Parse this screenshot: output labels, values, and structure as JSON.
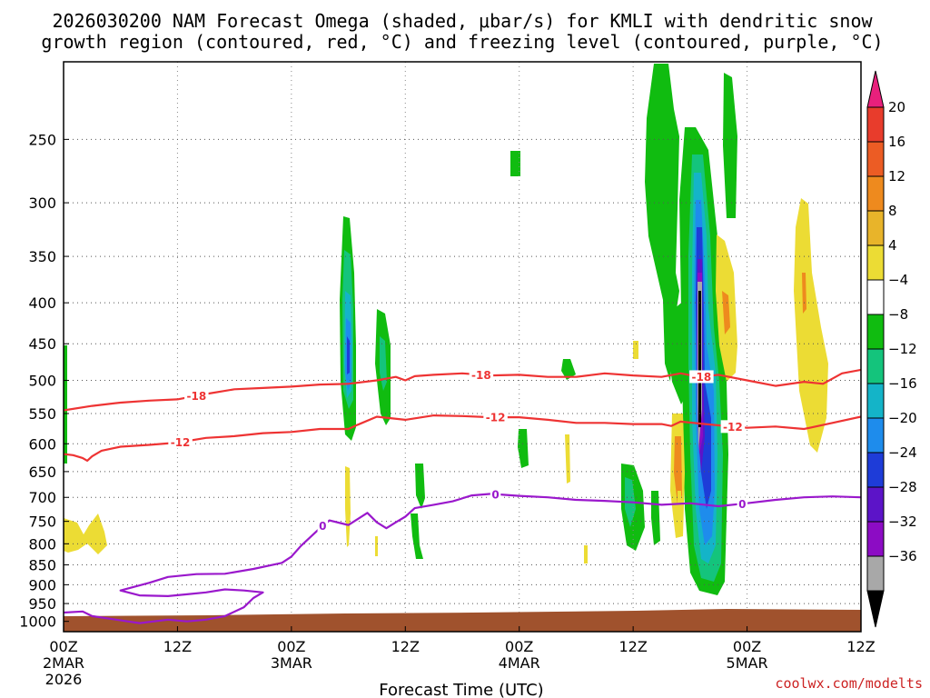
{
  "chart_data": {
    "type": "contour",
    "title_line1": "2026030200 NAM Forecast Omega (shaded, μbar/s) for KMLI with dendritic snow",
    "title_line2": "growth region (contoured, red, °C) and freezing level (contoured, purple, °C)",
    "xlabel": "Forecast Time (UTC)",
    "credit": "coolwx.com/modelts",
    "x_range_hours": [
      0,
      84
    ],
    "y_range_hpa": [
      1030,
      200
    ],
    "x_ticks": [
      {
        "hour": 0,
        "line1": "00Z",
        "line2": "2MAR",
        "line3": "2026"
      },
      {
        "hour": 12,
        "line1": "12Z",
        "line2": "",
        "line3": ""
      },
      {
        "hour": 24,
        "line1": "00Z",
        "line2": "3MAR",
        "line3": ""
      },
      {
        "hour": 36,
        "line1": "12Z",
        "line2": "",
        "line3": ""
      },
      {
        "hour": 48,
        "line1": "00Z",
        "line2": "4MAR",
        "line3": ""
      },
      {
        "hour": 60,
        "line1": "12Z",
        "line2": "",
        "line3": ""
      },
      {
        "hour": 72,
        "line1": "00Z",
        "line2": "5MAR",
        "line3": ""
      },
      {
        "hour": 84,
        "line1": "12Z",
        "line2": "",
        "line3": ""
      }
    ],
    "y_ticks": [
      250,
      300,
      350,
      400,
      450,
      500,
      550,
      600,
      650,
      700,
      750,
      800,
      850,
      900,
      950,
      1000
    ],
    "colorbar": {
      "labels": [
        "20",
        "16",
        "12",
        "8",
        "4",
        "−4",
        "−8",
        "−12",
        "−16",
        "−20",
        "−24",
        "−28",
        "−32",
        "−36"
      ],
      "colors": [
        "#e8207c",
        "#e83c2c",
        "#ec5c24",
        "#ee8a1e",
        "#e8b42a",
        "#ecdc34",
        "#ffffff",
        "#10bc10",
        "#14c47c",
        "#14b4c8",
        "#1e8cec",
        "#1e3cd8",
        "#5c14c8",
        "#8c0cc4",
        "#a8a8a8",
        "#000000"
      ]
    },
    "series": [
      {
        "name": "-18",
        "kind": "dgz-top",
        "color": "#ee3333",
        "points": [
          [
            0,
            545
          ],
          [
            3,
            538
          ],
          [
            6,
            533
          ],
          [
            9,
            530
          ],
          [
            12,
            528
          ],
          [
            15,
            520
          ],
          [
            18,
            513
          ],
          [
            21,
            511
          ],
          [
            24,
            509
          ],
          [
            27,
            506
          ],
          [
            30,
            505
          ],
          [
            33,
            500
          ],
          [
            35,
            495
          ],
          [
            36,
            500
          ],
          [
            37,
            494
          ],
          [
            39,
            492
          ],
          [
            42,
            490
          ],
          [
            45,
            493
          ],
          [
            48,
            492
          ],
          [
            51,
            495
          ],
          [
            54,
            495
          ],
          [
            57,
            490
          ],
          [
            60,
            493
          ],
          [
            63,
            495
          ],
          [
            65,
            490
          ],
          [
            67,
            495
          ],
          [
            69,
            492
          ],
          [
            72,
            500
          ],
          [
            75,
            508
          ],
          [
            78,
            502
          ],
          [
            80,
            505
          ],
          [
            82,
            490
          ],
          [
            84,
            485
          ]
        ],
        "labels": [
          {
            "text": "-18",
            "hour": 14
          },
          {
            "text": "-18",
            "hour": 44
          },
          {
            "text": "-18",
            "hour": 67.2
          }
        ]
      },
      {
        "name": "-12",
        "kind": "dgz-bottom",
        "color": "#ee3333",
        "points": [
          [
            0,
            618
          ],
          [
            1,
            620
          ],
          [
            2,
            625
          ],
          [
            2.5,
            630
          ],
          [
            3,
            622
          ],
          [
            4,
            612
          ],
          [
            6,
            605
          ],
          [
            9,
            602
          ],
          [
            12,
            598
          ],
          [
            15,
            590
          ],
          [
            18,
            587
          ],
          [
            21,
            582
          ],
          [
            24,
            580
          ],
          [
            27,
            575
          ],
          [
            30,
            575
          ],
          [
            31,
            568
          ],
          [
            33,
            555
          ],
          [
            36,
            560
          ],
          [
            39,
            553
          ],
          [
            42,
            554
          ],
          [
            45,
            556
          ],
          [
            48,
            556
          ],
          [
            51,
            560
          ],
          [
            54,
            565
          ],
          [
            57,
            565
          ],
          [
            60,
            567
          ],
          [
            63,
            567
          ],
          [
            64,
            570
          ],
          [
            65,
            563
          ],
          [
            67,
            566
          ],
          [
            69,
            569
          ],
          [
            72,
            573
          ],
          [
            75,
            571
          ],
          [
            78,
            575
          ],
          [
            81,
            565
          ],
          [
            84,
            555
          ]
        ],
        "labels": [
          {
            "text": "-12",
            "hour": 12.3
          },
          {
            "text": "-12",
            "hour": 45.5
          },
          {
            "text": "-12",
            "hour": 70.5
          }
        ]
      },
      {
        "name": "0",
        "kind": "freezing-level",
        "color": "#9a18cc",
        "points": [
          [
            0,
            975
          ],
          [
            2,
            972
          ],
          [
            3,
            985
          ],
          [
            8,
            1005
          ],
          [
            11,
            995
          ],
          [
            13,
            1000
          ],
          [
            15,
            995
          ],
          [
            17,
            985
          ],
          [
            19,
            960
          ],
          [
            20,
            935
          ],
          [
            21,
            920
          ],
          [
            19,
            915
          ],
          [
            17,
            912
          ],
          [
            15,
            920
          ],
          [
            13,
            925
          ],
          [
            11,
            930
          ],
          [
            8,
            928
          ],
          [
            6,
            915
          ],
          [
            9,
            895
          ],
          [
            11,
            880
          ],
          [
            14,
            873
          ],
          [
            17,
            872
          ],
          [
            20,
            860
          ],
          [
            23,
            845
          ],
          [
            24,
            830
          ],
          [
            25,
            805
          ],
          [
            27,
            765
          ],
          [
            28,
            748
          ],
          [
            30,
            758
          ],
          [
            32,
            732
          ],
          [
            33,
            752
          ],
          [
            34,
            765
          ],
          [
            35,
            752
          ],
          [
            36,
            740
          ],
          [
            37,
            722
          ],
          [
            39,
            715
          ],
          [
            41,
            708
          ],
          [
            43,
            696
          ],
          [
            45,
            693
          ],
          [
            48,
            697
          ],
          [
            51,
            700
          ],
          [
            54,
            705
          ],
          [
            57,
            707
          ],
          [
            60,
            710
          ],
          [
            63,
            715
          ],
          [
            66,
            712
          ],
          [
            69,
            718
          ],
          [
            72,
            712
          ],
          [
            75,
            705
          ],
          [
            78,
            700
          ],
          [
            81,
            698
          ],
          [
            84,
            700
          ]
        ],
        "labels": [
          {
            "text": "0",
            "hour": 27.3
          },
          {
            "text": "0",
            "hour": 45.5
          },
          {
            "text": "0",
            "hour": 71.5
          }
        ]
      }
    ],
    "omega_bins": [
      {
        "bin": "-8 to -4",
        "color": "#10bc10",
        "regions": [
          [
            62.5,
            200,
            66.5,
            345
          ],
          [
            59.5,
            650,
            61.5,
            830
          ],
          [
            37.5,
            650,
            38.5,
            850
          ],
          [
            38.5,
            650,
            39.2,
            700
          ],
          [
            48,
            620,
            49,
            690
          ],
          [
            66,
            200,
            70,
            320
          ],
          [
            66,
            300,
            68.5,
            580
          ],
          [
            70,
            200,
            71.5,
            300
          ]
        ]
      },
      {
        "bin": "4 to 8",
        "color": "#ecdc34",
        "regions": [
          [
            77.5,
            295,
            80.5,
            630
          ],
          [
            69.5,
            345,
            72,
            500
          ],
          [
            0,
            770,
            4.5,
            830
          ],
          [
            60.5,
            370,
            61.5,
            480
          ],
          [
            65,
            680,
            66.5,
            790
          ]
        ]
      }
    ]
  }
}
